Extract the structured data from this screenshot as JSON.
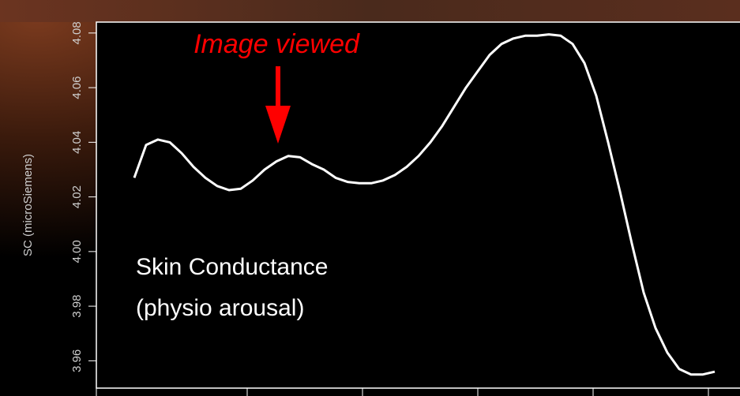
{
  "chart_data": {
    "type": "line",
    "y_label": "SC (microSiemens)",
    "annotations": [
      "Image viewed",
      "Skin Conductance",
      "(physio arousal)"
    ],
    "series": [
      {
        "color": "#ffffff",
        "values": [
          4.027,
          4.039,
          4.041,
          4.04,
          4.036,
          4.031,
          4.027,
          4.024,
          4.0225,
          4.023,
          4.026,
          4.03,
          4.033,
          4.035,
          4.0345,
          4.032,
          4.03,
          4.027,
          4.0255,
          4.025,
          4.025,
          4.026,
          4.028,
          4.031,
          4.035,
          4.04,
          4.046,
          4.053,
          4.06,
          4.066,
          4.072,
          4.076,
          4.078,
          4.079,
          4.079,
          4.0795,
          4.079,
          4.076,
          4.069,
          4.057,
          4.04,
          4.022,
          4.003,
          3.985,
          3.972,
          3.963,
          3.957,
          3.955,
          3.955,
          3.956
        ]
      }
    ],
    "ylim": [
      3.95,
      4.084
    ],
    "yticks": [
      3.96,
      3.98,
      {
        "value": 4,
        "label": "4.00"
      },
      4.02,
      4.04,
      4.06,
      4.08
    ]
  }
}
